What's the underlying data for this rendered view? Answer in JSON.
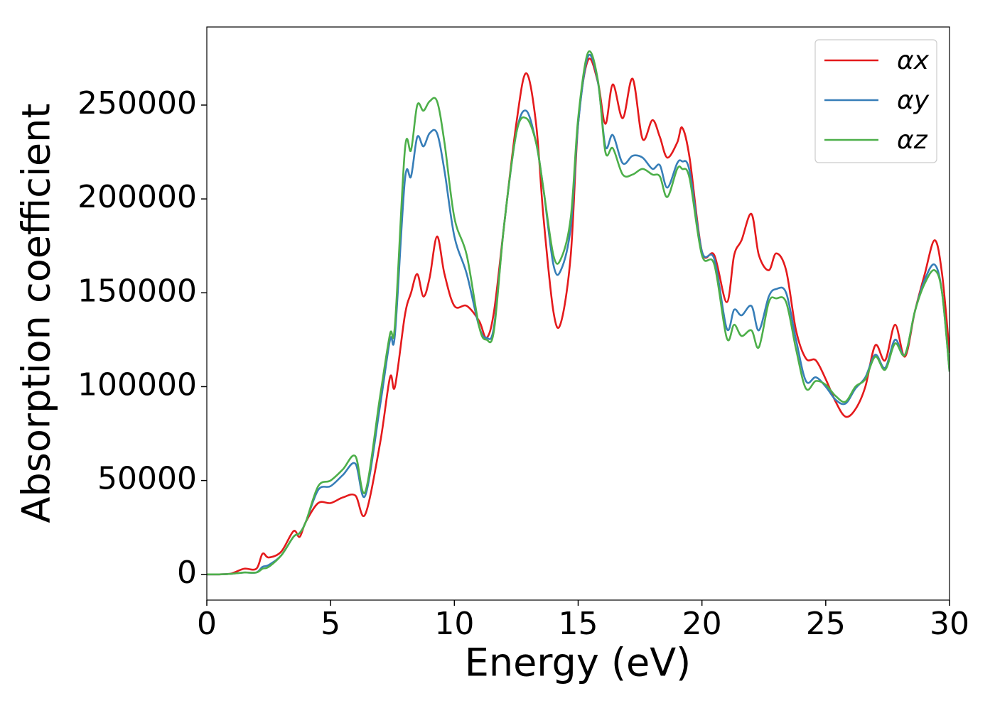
{
  "chart_data": {
    "type": "line",
    "x_label": "Energy (eV)",
    "y_label": "Absorption coefficient",
    "x": [
      0,
      0.5,
      1,
      1.5,
      2,
      2.25,
      2.5,
      3,
      3.5,
      3.75,
      4,
      4.5,
      5,
      5.5,
      6,
      6.4,
      7,
      7.4,
      7.6,
      8,
      8.25,
      8.5,
      8.75,
      9,
      9.3,
      9.6,
      10,
      10.5,
      11,
      11.3,
      11.6,
      12,
      12.5,
      12.9,
      13.3,
      13.6,
      14,
      14.3,
      14.7,
      15,
      15.4,
      15.8,
      16.1,
      16.4,
      16.8,
      17.2,
      17.6,
      18,
      18.3,
      18.6,
      19,
      19.2,
      19.5,
      20,
      20.5,
      21,
      21.3,
      21.6,
      22,
      22.3,
      22.7,
      23,
      23.4,
      23.8,
      24.2,
      24.6,
      25,
      25.4,
      25.8,
      26.2,
      26.6,
      27,
      27.4,
      27.8,
      28.2,
      28.6,
      29,
      29.4,
      29.7,
      30
    ],
    "series": [
      {
        "name": "αx",
        "color": "#e41a1c",
        "values": [
          0,
          0,
          500,
          3000,
          3000,
          11000,
          9000,
          12000,
          23000,
          20000,
          28000,
          38000,
          38000,
          41000,
          42000,
          32000,
          70000,
          105000,
          100000,
          138000,
          150000,
          160000,
          148000,
          158000,
          180000,
          160000,
          143000,
          143000,
          135000,
          126000,
          140000,
          185000,
          240000,
          267000,
          240000,
          190000,
          140000,
          134000,
          170000,
          240000,
          274000,
          262000,
          240000,
          261000,
          243000,
          264000,
          232000,
          242000,
          233000,
          222000,
          230000,
          238000,
          222000,
          172000,
          170000,
          145000,
          170000,
          178000,
          192000,
          170000,
          162000,
          171000,
          162000,
          130000,
          115000,
          114000,
          104000,
          92000,
          84000,
          88000,
          100000,
          122000,
          114000,
          133000,
          116000,
          140000,
          160000,
          178000,
          160000,
          118000
        ]
      },
      {
        "name": "αy",
        "color": "#377eb8",
        "values": [
          0,
          0,
          300,
          1000,
          1000,
          4000,
          5000,
          10000,
          20000,
          22000,
          28000,
          45000,
          47000,
          53000,
          59000,
          42000,
          90000,
          125000,
          128000,
          210000,
          212000,
          233000,
          228000,
          235000,
          235000,
          215000,
          180000,
          160000,
          132000,
          126000,
          132000,
          185000,
          235000,
          247000,
          230000,
          205000,
          165000,
          162000,
          185000,
          240000,
          276000,
          262000,
          228000,
          234000,
          219000,
          223000,
          222000,
          216000,
          218000,
          206000,
          219000,
          220000,
          215000,
          172000,
          168000,
          131000,
          141000,
          138000,
          143000,
          130000,
          148000,
          152000,
          150000,
          125000,
          103000,
          105000,
          100000,
          93000,
          91000,
          99000,
          105000,
          117000,
          110000,
          125000,
          117000,
          140000,
          157000,
          165000,
          150000,
          108000
        ]
      },
      {
        "name": "αz",
        "color": "#4daf4a",
        "values": [
          0,
          0,
          300,
          1000,
          1000,
          3000,
          4000,
          10000,
          20000,
          22000,
          28000,
          47000,
          50000,
          56000,
          63000,
          44000,
          95000,
          128000,
          133000,
          226000,
          226000,
          250000,
          247000,
          252000,
          252000,
          230000,
          190000,
          170000,
          132000,
          125000,
          130000,
          185000,
          235000,
          243000,
          230000,
          205000,
          170000,
          168000,
          190000,
          243000,
          278000,
          263000,
          225000,
          227000,
          213000,
          213000,
          216000,
          213000,
          212000,
          201000,
          216000,
          216000,
          211000,
          170000,
          165000,
          126000,
          133000,
          127000,
          130000,
          121000,
          145000,
          147000,
          145000,
          120000,
          99000,
          103000,
          101000,
          95000,
          92000,
          100000,
          104000,
          116000,
          109000,
          123000,
          117000,
          140000,
          155000,
          162000,
          150000,
          108000
        ]
      }
    ],
    "xlim": [
      0,
      30
    ],
    "xticks": [
      0,
      5,
      10,
      15,
      20,
      25,
      30
    ],
    "ylim": [
      -13700,
      291600
    ],
    "yticks": [
      0,
      50000,
      100000,
      150000,
      200000,
      250000
    ],
    "grid": false,
    "legend": "upper right"
  }
}
